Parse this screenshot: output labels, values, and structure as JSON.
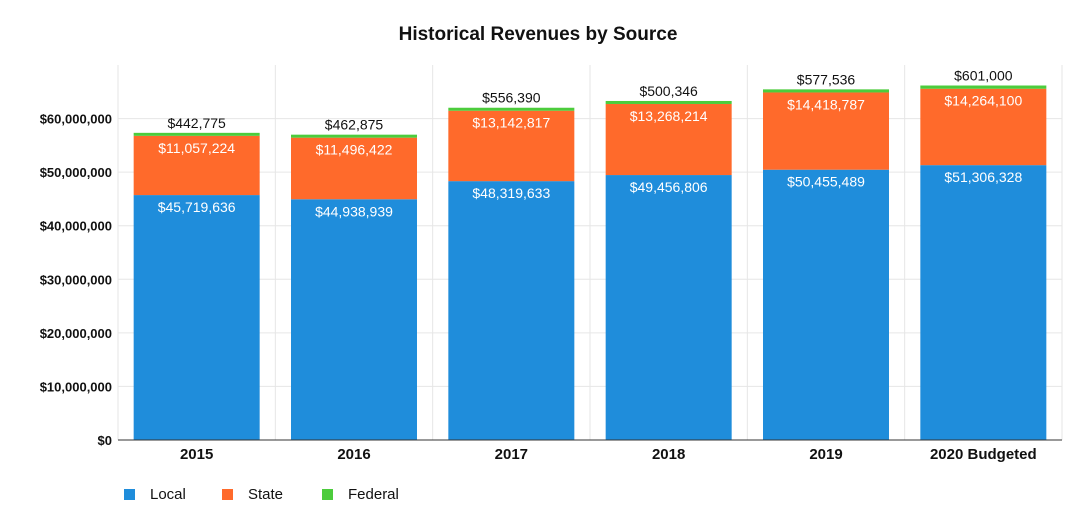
{
  "chart_data": {
    "type": "bar",
    "stacked": true,
    "title": "Historical Revenues by Source",
    "xlabel": "",
    "ylabel": "",
    "categories": [
      "2015",
      "2016",
      "2017",
      "2018",
      "2019",
      "2020 Budgeted"
    ],
    "series": [
      {
        "name": "Local",
        "color": "#1f8ddb",
        "values": [
          45719636,
          44938939,
          48319633,
          49456806,
          50455489,
          51306328
        ],
        "labels": [
          "$45,719,636",
          "$44,938,939",
          "$48,319,633",
          "$49,456,806",
          "$50,455,489",
          "$51,306,328"
        ]
      },
      {
        "name": "State",
        "color": "#ff6a2b",
        "values": [
          11057224,
          11496422,
          13142817,
          13268214,
          14418787,
          14264100
        ],
        "labels": [
          "$11,057,224",
          "$11,496,422",
          "$13,142,817",
          "$13,268,214",
          "$14,418,787",
          "$14,264,100"
        ]
      },
      {
        "name": "Federal",
        "color": "#4ccc3c",
        "values": [
          442775,
          462875,
          556390,
          500346,
          577536,
          601000
        ],
        "labels": [
          "$442,775",
          "$462,875",
          "$556,390",
          "$500,346",
          "$577,536",
          "$601,000"
        ]
      }
    ],
    "ylim": [
      0,
      70000000
    ],
    "yticks": [
      0,
      10000000,
      20000000,
      30000000,
      40000000,
      50000000,
      60000000
    ],
    "ytick_labels": [
      "$0",
      "$10,000,000",
      "$20,000,000",
      "$30,000,000",
      "$40,000,000",
      "$50,000,000",
      "$60,000,000"
    ],
    "grid": true,
    "legend_position": "bottom-left"
  }
}
